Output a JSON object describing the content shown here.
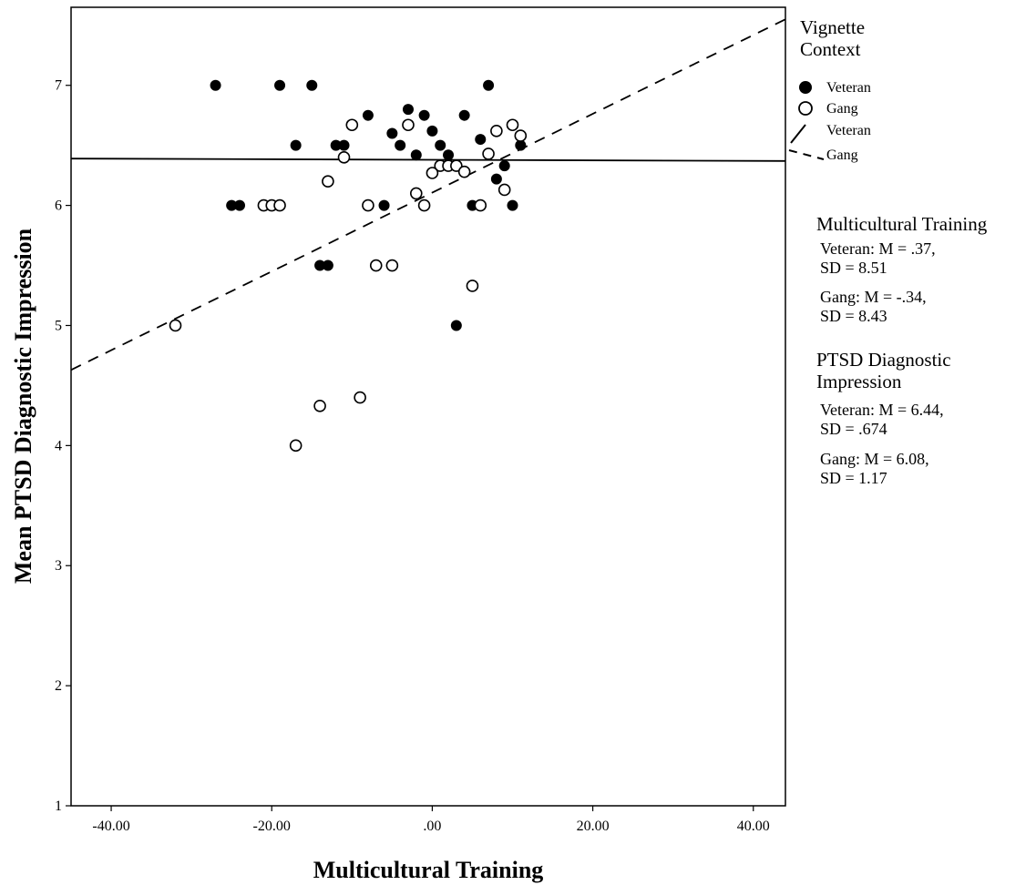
{
  "chart_data": {
    "type": "scatter",
    "xlabel": "Multicultural Training",
    "ylabel": "Mean PTSD Diagnostic Impression",
    "xlim": [
      -45,
      44
    ],
    "ylim": [
      1,
      7.65
    ],
    "xticks": [
      -40,
      -20,
      0,
      20,
      40
    ],
    "xtick_labels": [
      "-40.00",
      "-20.00",
      ".00",
      "20.00",
      "40.00"
    ],
    "yticks": [
      1,
      2,
      3,
      4,
      5,
      6,
      7
    ],
    "ytick_labels": [
      "1",
      "2",
      "3",
      "4",
      "5",
      "6",
      "7"
    ],
    "grid": false,
    "legend": {
      "title": "Vignette Context",
      "placement": "right",
      "entries": [
        {
          "label": "Veteran",
          "marker": "filled-circle"
        },
        {
          "label": "Gang",
          "marker": "open-circle"
        },
        {
          "label": "Veteran",
          "line": "solid"
        },
        {
          "label": "Gang",
          "line": "dashed"
        }
      ]
    },
    "series": [
      {
        "name": "Veteran",
        "marker": "filled",
        "points": [
          [
            -27,
            7.0
          ],
          [
            -19,
            7.0
          ],
          [
            -15,
            7.0
          ],
          [
            7,
            7.0
          ],
          [
            -3,
            6.8
          ],
          [
            -8,
            6.75
          ],
          [
            -1,
            6.75
          ],
          [
            4,
            6.75
          ],
          [
            -5,
            6.6
          ],
          [
            0,
            6.62
          ],
          [
            6,
            6.55
          ],
          [
            -17,
            6.5
          ],
          [
            -12,
            6.5
          ],
          [
            -11,
            6.5
          ],
          [
            -4,
            6.5
          ],
          [
            1,
            6.5
          ],
          [
            11,
            6.5
          ],
          [
            -2,
            6.42
          ],
          [
            2,
            6.42
          ],
          [
            9,
            6.33
          ],
          [
            8,
            6.22
          ],
          [
            -25,
            6.0
          ],
          [
            -24,
            6.0
          ],
          [
            -20,
            6.0
          ],
          [
            -6,
            6.0
          ],
          [
            5,
            6.0
          ],
          [
            10,
            6.0
          ],
          [
            -14,
            5.5
          ],
          [
            -13,
            5.5
          ],
          [
            3,
            5.0
          ]
        ],
        "fit_line": {
          "style": "solid",
          "x": [
            -45,
            44
          ],
          "y": [
            6.39,
            6.37
          ]
        }
      },
      {
        "name": "Gang",
        "marker": "open",
        "points": [
          [
            -10,
            6.67
          ],
          [
            -3,
            6.67
          ],
          [
            10,
            6.67
          ],
          [
            8,
            6.62
          ],
          [
            11,
            6.58
          ],
          [
            -11,
            6.4
          ],
          [
            7,
            6.43
          ],
          [
            1,
            6.33
          ],
          [
            2,
            6.33
          ],
          [
            3,
            6.33
          ],
          [
            4,
            6.28
          ],
          [
            0,
            6.27
          ],
          [
            -13,
            6.2
          ],
          [
            9,
            6.13
          ],
          [
            -2,
            6.1
          ],
          [
            -21,
            6.0
          ],
          [
            -20,
            6.0
          ],
          [
            -19,
            6.0
          ],
          [
            -8,
            6.0
          ],
          [
            -1,
            6.0
          ],
          [
            6,
            6.0
          ],
          [
            -7,
            5.5
          ],
          [
            -5,
            5.5
          ],
          [
            5,
            5.33
          ],
          [
            -32,
            5.0
          ],
          [
            -9,
            4.4
          ],
          [
            -14,
            4.33
          ],
          [
            -17,
            4.0
          ]
        ],
        "fit_line": {
          "style": "dashed",
          "x": [
            -45,
            44
          ],
          "y": [
            4.63,
            7.55
          ]
        }
      }
    ]
  },
  "stats": {
    "training_heading": "Multicultural Training",
    "training_veteran_mean": "Veteran: M = .37,",
    "training_veteran_sd": "SD = 8.51",
    "training_gang_mean": "Gang: M = -.34,",
    "training_gang_sd": "SD = 8.43",
    "ptsd_heading_line1": "PTSD Diagnostic",
    "ptsd_heading_line2": "Impression",
    "ptsd_veteran_mean": "Veteran: M = 6.44,",
    "ptsd_veteran_sd": "SD = .674",
    "ptsd_gang_mean": "Gang: M = 6.08,",
    "ptsd_gang_sd": "SD = 1.17"
  }
}
